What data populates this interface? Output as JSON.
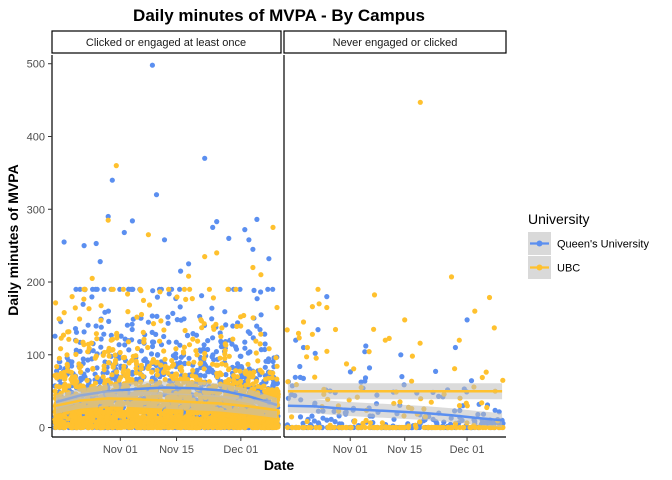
{
  "chart_data": {
    "type": "scatter",
    "title": "Daily minutes of MVPA - By Campus",
    "xlabel": "Date",
    "ylabel": "Daily minutes of MVPA",
    "xlim": [
      "2020-10-15",
      "2020-12-11"
    ],
    "ylim": [
      -13,
      512
    ],
    "y_ticks": [
      0,
      100,
      200,
      300,
      400,
      500
    ],
    "x_ticks": [
      {
        "date": "2020-11-01",
        "label": "Nov 01"
      },
      {
        "date": "2020-11-15",
        "label": "Nov 15"
      },
      {
        "date": "2020-12-01",
        "label": "Dec 01"
      }
    ],
    "grid": false,
    "legend": {
      "title": "University",
      "placement": "right",
      "entries": [
        {
          "label": "Queen's University",
          "color": "#5B8FF0"
        },
        {
          "label": "UBC",
          "color": "#FFC12E"
        }
      ]
    },
    "colors": {
      "queens": "#5B8FF0",
      "ubc": "#FFC12E",
      "band": "#BEBEBE",
      "strip_bg": "#FFFFFF"
    },
    "panels": [
      {
        "strip": "Clicked or engaged at least once",
        "series": [
          {
            "key": "queens",
            "outliers": [
              [
                "2020-10-18",
                255
              ],
              [
                "2020-10-23",
                250
              ],
              [
                "2020-10-26",
                253
              ],
              [
                "2020-10-29",
                290
              ],
              [
                "2020-10-30",
                340
              ],
              [
                "2020-11-02",
                268
              ],
              [
                "2020-11-04",
                284
              ],
              [
                "2020-11-09",
                498
              ],
              [
                "2020-11-10",
                320
              ],
              [
                "2020-11-12",
                258
              ],
              [
                "2020-11-22",
                370
              ],
              [
                "2020-11-24",
                275
              ],
              [
                "2020-11-25",
                283
              ],
              [
                "2020-11-28",
                260
              ],
              [
                "2020-12-02",
                272
              ],
              [
                "2020-12-03",
                258
              ],
              [
                "2020-12-04",
                245
              ],
              [
                "2020-12-05",
                286
              ],
              [
                "2020-12-08",
                232
              ],
              [
                "2020-11-16",
                215
              ],
              [
                "2020-11-18",
                225
              ],
              [
                "2020-10-27",
                228
              ]
            ],
            "smooth": [
              [
                "2020-10-16",
                35
              ],
              [
                "2020-10-22",
                44
              ],
              [
                "2020-10-29",
                50
              ],
              [
                "2020-11-05",
                53
              ],
              [
                "2020-11-12",
                55
              ],
              [
                "2020-11-19",
                54
              ],
              [
                "2020-11-26",
                51
              ],
              [
                "2020-12-03",
                43
              ],
              [
                "2020-12-10",
                31
              ]
            ]
          },
          {
            "key": "ubc",
            "outliers": [
              [
                "2020-10-31",
                360
              ],
              [
                "2020-10-29",
                285
              ],
              [
                "2020-11-08",
                265
              ],
              [
                "2020-11-18",
                208
              ],
              [
                "2020-11-22",
                235
              ],
              [
                "2020-12-04",
                220
              ],
              [
                "2020-12-06",
                210
              ],
              [
                "2020-12-09",
                275
              ],
              [
                "2020-12-10",
                165
              ],
              [
                "2020-10-20",
                180
              ],
              [
                "2020-11-25",
                240
              ],
              [
                "2020-10-25",
                205
              ]
            ],
            "smooth": [
              [
                "2020-10-16",
                30
              ],
              [
                "2020-10-22",
                37
              ],
              [
                "2020-10-29",
                40
              ],
              [
                "2020-11-05",
                39
              ],
              [
                "2020-11-12",
                37
              ],
              [
                "2020-11-19",
                35
              ],
              [
                "2020-11-26",
                33
              ],
              [
                "2020-12-03",
                29
              ],
              [
                "2020-12-10",
                24
              ]
            ]
          }
        ]
      },
      {
        "strip": "Never engaged or clicked",
        "series": [
          {
            "key": "queens",
            "outliers": [
              [
                "2020-10-26",
                180
              ],
              [
                "2020-10-18",
                120
              ],
              [
                "2020-10-20",
                110
              ],
              [
                "2020-11-05",
                112
              ],
              [
                "2020-11-14",
                100
              ],
              [
                "2020-11-28",
                110
              ],
              [
                "2020-12-01",
                148
              ],
              [
                "2020-10-23",
                102
              ]
            ],
            "smooth": [
              [
                "2020-10-16",
                30
              ],
              [
                "2020-10-23",
                29
              ],
              [
                "2020-10-30",
                26
              ],
              [
                "2020-11-06",
                24
              ],
              [
                "2020-11-13",
                22
              ],
              [
                "2020-11-20",
                20
              ],
              [
                "2020-11-27",
                17
              ],
              [
                "2020-12-04",
                13
              ],
              [
                "2020-12-10",
                10
              ]
            ]
          },
          {
            "key": "ubc",
            "outliers": [
              [
                "2020-11-19",
                447
              ],
              [
                "2020-11-27",
                207
              ],
              [
                "2020-10-24",
                170
              ],
              [
                "2020-10-26",
                165
              ],
              [
                "2020-10-20",
                145
              ],
              [
                "2020-11-07",
                135
              ],
              [
                "2020-12-03",
                160
              ],
              [
                "2020-12-08",
                137
              ],
              [
                "2020-11-29",
                120
              ],
              [
                "2020-11-15",
                148
              ],
              [
                "2020-11-10",
                120
              ],
              [
                "2020-10-21",
                110
              ]
            ],
            "smooth": [
              [
                "2020-10-16",
                50
              ],
              [
                "2020-10-30",
                50
              ],
              [
                "2020-11-13",
                50
              ],
              [
                "2020-11-27",
                50
              ],
              [
                "2020-12-10",
                50
              ]
            ]
          }
        ]
      }
    ]
  }
}
